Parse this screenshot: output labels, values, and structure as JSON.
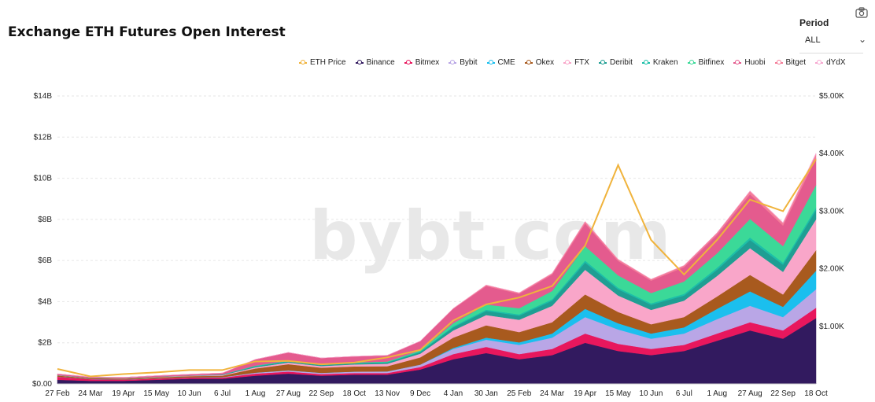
{
  "page": {
    "title": "Exchange ETH Futures Open Interest",
    "period_label": "Period",
    "period_value": "ALL",
    "watermark": "bybt.com"
  },
  "colors": {
    "ETH Price": "#f0b33c",
    "Binance": "#321a5f",
    "Bitmex": "#e8175d",
    "Bybit": "#b9a6e6",
    "CME": "#1bbfee",
    "Okex": "#a85a1e",
    "FTX": "#f9a6c9",
    "Deribit": "#1f9e93",
    "Kraken": "#1cbfa8",
    "Bitfinex": "#3bd998",
    "Huobi": "#e45b8e",
    "Bitget": "#f47c98",
    "dYdX": "#f7a8d0"
  },
  "chart_data": {
    "type": "area",
    "stacked": true,
    "title": "Exchange ETH Futures Open Interest",
    "legend_position": "top-right",
    "grid": true,
    "x": [
      "27 Feb",
      "24 Mar",
      "19 Apr",
      "15 May",
      "10 Jun",
      "6 Jul",
      "1 Aug",
      "27 Aug",
      "22 Sep",
      "18 Oct",
      "13 Nov",
      "9 Dec",
      "4 Jan",
      "30 Jan",
      "25 Feb",
      "24 Mar",
      "19 Apr",
      "15 May",
      "10 Jun",
      "6 Jul",
      "1 Aug",
      "27 Aug",
      "22 Sep",
      "18 Oct"
    ],
    "y_left": {
      "ticks": [
        "$0.00",
        "$2B",
        "$4B",
        "$6B",
        "$8B",
        "$10B",
        "$12B",
        "$14B"
      ],
      "ylim": [
        0,
        14
      ]
    },
    "y_right": {
      "ticks": [
        "$1.00K",
        "$2.00K",
        "$3.00K",
        "$4.00K",
        "$5.00K"
      ],
      "ylim": [
        0,
        5000
      ]
    },
    "series": [
      {
        "name": "Binance",
        "values": [
          0.2,
          0.15,
          0.15,
          0.2,
          0.25,
          0.25,
          0.4,
          0.5,
          0.4,
          0.45,
          0.45,
          0.7,
          1.2,
          1.5,
          1.2,
          1.4,
          2.0,
          1.6,
          1.4,
          1.6,
          2.1,
          2.6,
          2.2,
          3.2
        ]
      },
      {
        "name": "Bitmex",
        "values": [
          0.15,
          0.08,
          0.06,
          0.06,
          0.06,
          0.06,
          0.1,
          0.1,
          0.08,
          0.08,
          0.08,
          0.12,
          0.25,
          0.3,
          0.25,
          0.3,
          0.45,
          0.35,
          0.3,
          0.3,
          0.35,
          0.4,
          0.4,
          0.5
        ]
      },
      {
        "name": "Bybit",
        "values": [
          0.01,
          0.01,
          0.01,
          0.01,
          0.01,
          0.02,
          0.05,
          0.06,
          0.06,
          0.07,
          0.08,
          0.12,
          0.25,
          0.35,
          0.45,
          0.55,
          0.8,
          0.7,
          0.5,
          0.55,
          0.7,
          0.8,
          0.65,
          0.9
        ]
      },
      {
        "name": "CME",
        "values": [
          0,
          0,
          0,
          0,
          0,
          0,
          0,
          0,
          0,
          0,
          0,
          0,
          0.05,
          0.1,
          0.12,
          0.2,
          0.4,
          0.3,
          0.25,
          0.3,
          0.5,
          0.7,
          0.5,
          0.9
        ]
      },
      {
        "name": "Okex",
        "values": [
          0.05,
          0.04,
          0.04,
          0.05,
          0.06,
          0.07,
          0.2,
          0.3,
          0.25,
          0.25,
          0.25,
          0.35,
          0.5,
          0.6,
          0.5,
          0.55,
          0.7,
          0.55,
          0.45,
          0.5,
          0.6,
          0.8,
          0.6,
          1.0
        ]
      },
      {
        "name": "FTX",
        "values": [
          0.01,
          0.01,
          0.01,
          0.02,
          0.02,
          0.03,
          0.06,
          0.08,
          0.08,
          0.1,
          0.12,
          0.18,
          0.35,
          0.5,
          0.6,
          0.8,
          1.2,
          0.8,
          0.7,
          0.8,
          1.0,
          1.3,
          1.1,
          1.5
        ]
      },
      {
        "name": "Deribit",
        "values": [
          0.01,
          0.01,
          0.01,
          0.01,
          0.01,
          0.02,
          0.04,
          0.05,
          0.05,
          0.05,
          0.06,
          0.08,
          0.15,
          0.2,
          0.2,
          0.25,
          0.35,
          0.3,
          0.25,
          0.25,
          0.3,
          0.4,
          0.35,
          0.45
        ]
      },
      {
        "name": "Kraken",
        "values": [
          0,
          0,
          0,
          0,
          0,
          0.01,
          0.02,
          0.02,
          0.02,
          0.02,
          0.02,
          0.03,
          0.05,
          0.06,
          0.06,
          0.07,
          0.1,
          0.08,
          0.07,
          0.08,
          0.1,
          0.12,
          0.1,
          0.12
        ]
      },
      {
        "name": "Bitfinex",
        "values": [
          0,
          0,
          0,
          0,
          0,
          0,
          0.02,
          0.02,
          0.02,
          0.02,
          0.03,
          0.05,
          0.15,
          0.25,
          0.3,
          0.4,
          0.7,
          0.6,
          0.5,
          0.6,
          0.7,
          0.9,
          0.8,
          1.1
        ]
      },
      {
        "name": "Huobi",
        "values": [
          0.06,
          0.04,
          0.04,
          0.05,
          0.06,
          0.07,
          0.3,
          0.4,
          0.3,
          0.3,
          0.3,
          0.45,
          0.7,
          0.9,
          0.7,
          0.8,
          1.1,
          0.7,
          0.6,
          0.7,
          0.9,
          1.2,
          1.0,
          1.3
        ]
      },
      {
        "name": "Bitget",
        "values": [
          0,
          0,
          0,
          0,
          0,
          0,
          0,
          0,
          0,
          0,
          0,
          0,
          0.02,
          0.05,
          0.05,
          0.06,
          0.1,
          0.08,
          0.07,
          0.08,
          0.1,
          0.15,
          0.12,
          0.2
        ]
      },
      {
        "name": "dYdX",
        "values": [
          0,
          0,
          0,
          0,
          0,
          0,
          0,
          0,
          0,
          0,
          0,
          0,
          0,
          0,
          0,
          0,
          0,
          0,
          0,
          0,
          0,
          0.02,
          0.03,
          0.05
        ]
      }
    ],
    "price_series": {
      "name": "ETH Price",
      "axis": "right",
      "values": [
        260,
        130,
        170,
        200,
        240,
        240,
        390,
        400,
        340,
        370,
        460,
        590,
        1100,
        1380,
        1500,
        1700,
        2400,
        3800,
        2500,
        1900,
        2500,
        3200,
        3000,
        3900
      ]
    }
  }
}
